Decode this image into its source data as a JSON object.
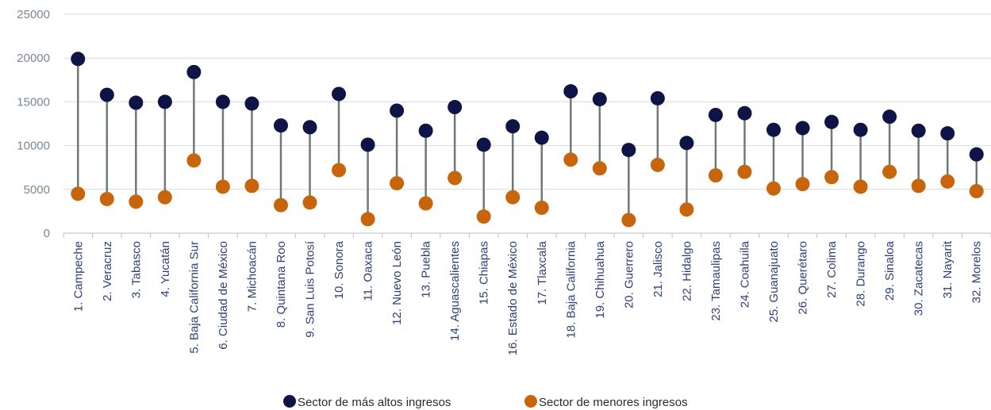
{
  "chart_data": {
    "type": "dumbbell",
    "categories": [
      "1. Campeche",
      "2. Veracruz",
      "3. Tabasco",
      "4. Yucatán",
      "5. Baja California Sur",
      "6. Ciudad de México",
      "7. Michoacán",
      "8. Quintana Roo",
      "9. San Luis Potosí",
      "10. Sonora",
      "11. Oaxaca",
      "12. Nuevo León",
      "13. Puebla",
      "14. Aguascalientes",
      "15. Chiapas",
      "16. Estado de México",
      "17. Tlaxcala",
      "18. Baja California",
      "19. Chihuahua",
      "20. Guerrero",
      "21. Jalisco",
      "22. Hidalgo",
      "23. Tamaulipas",
      "24. Coahuila",
      "25. Guanajuato",
      "26. Querétaro",
      "27. Colima",
      "28. Durango",
      "29. Sinaloa",
      "30. Zacatecas",
      "31. Nayarit",
      "32. Morelos"
    ],
    "series": [
      {
        "name": "Sector de más altos ingresos",
        "color": "#0f1446",
        "values": [
          19900,
          15800,
          14900,
          15000,
          18400,
          15000,
          14800,
          12300,
          12100,
          15900,
          10100,
          14000,
          11700,
          14400,
          10100,
          12200,
          10900,
          16200,
          15300,
          9500,
          15400,
          10300,
          13500,
          13700,
          11800,
          12000,
          12700,
          11800,
          13300,
          11700,
          11400,
          9000
        ]
      },
      {
        "name": "Sector de menores ingresos",
        "color": "#c8640a",
        "values": [
          4500,
          3900,
          3600,
          4100,
          8300,
          5300,
          5400,
          3200,
          3500,
          7200,
          1600,
          5700,
          3400,
          6300,
          1900,
          4100,
          2900,
          8400,
          7400,
          1500,
          7800,
          2700,
          6600,
          7000,
          5100,
          5600,
          6400,
          5300,
          7000,
          5400,
          5900,
          4800
        ]
      }
    ],
    "yticks": [
      0,
      5000,
      10000,
      15000,
      20000,
      25000
    ],
    "ylim": [
      0,
      25000
    ],
    "grid": true,
    "legend_position": "bottom",
    "connector_color": "#6f7a73"
  }
}
